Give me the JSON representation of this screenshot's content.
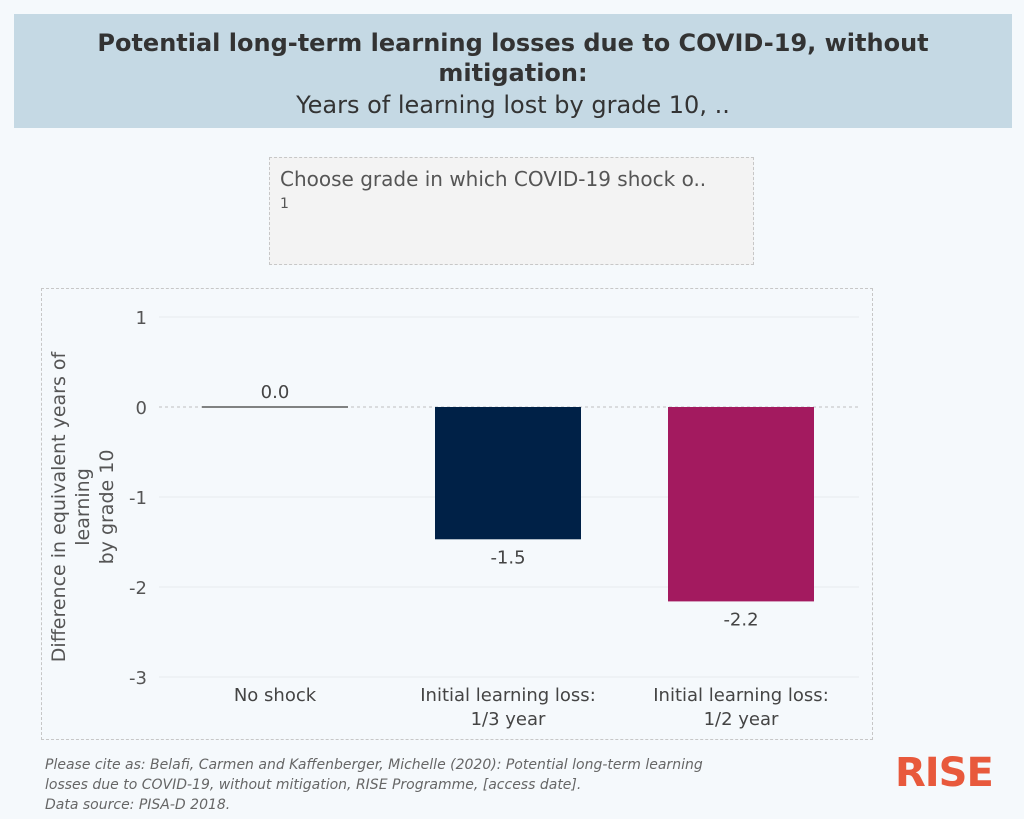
{
  "header": {
    "title": "Potential long-term learning losses due to COVID-19, without mitigation:",
    "subtitle": "Years of learning lost by grade 10, .."
  },
  "selector": {
    "label": "Choose grade in which COVID-19 shock o..",
    "value": "1"
  },
  "chart_data": {
    "type": "bar",
    "categories": [
      [
        "No shock"
      ],
      [
        "Initial learning loss:",
        "1/3 year"
      ],
      [
        "Initial learning loss:",
        "1/2 year"
      ]
    ],
    "values": [
      0.0,
      -1.47,
      -2.16
    ],
    "value_labels": [
      "0.0",
      "-1.5",
      "-2.2"
    ],
    "colors": [
      "#5a5a5a",
      "#002147",
      "#a31a5f"
    ],
    "ylabel_lines": [
      "Difference in equivalent years of",
      "learning",
      "by grade 10"
    ],
    "ylim": [
      -3,
      1
    ],
    "yticks": [
      1,
      0,
      -1,
      -2,
      -3
    ],
    "grid": true
  },
  "citation": {
    "line1": "Please cite as: Belafi, Carmen and Kaffenberger, Michelle (2020): Potential long-term learning",
    "line2": "losses due to COVID-19, without mitigation, RISE Programme, [access date].",
    "line3": "Data source: PISA-D 2018."
  },
  "logo": {
    "text": "RISE",
    "color": "#e8593c"
  }
}
